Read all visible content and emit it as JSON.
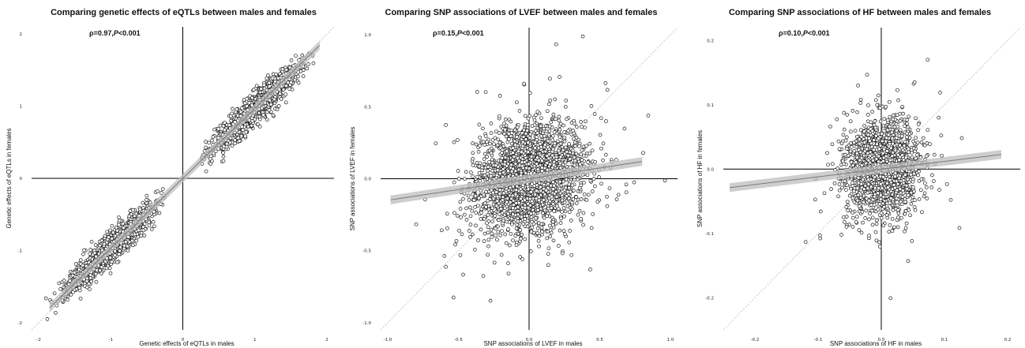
{
  "chart_data": [
    {
      "type": "scatter",
      "title": "Comparing genetic effects of eQTLs between males and females",
      "annotation_rho": "ρ=0.97,",
      "annotation_p_italic": "P",
      "annotation_rest": "<0.001",
      "xlabel": "Genetic effects of eQTLs in males",
      "ylabel": "Genetic effects of eQTLs in females",
      "xlim": [
        -2.1,
        2.1
      ],
      "ylim": [
        -2.1,
        2.1
      ],
      "xticks": [
        "-2",
        "-1",
        "0",
        "1",
        "2"
      ],
      "xtick_values": [
        -2,
        -1,
        0,
        1,
        2
      ],
      "yticks": [
        "-2",
        "-1",
        "0",
        "1",
        "2"
      ],
      "ytick_values": [
        -2,
        -1,
        0,
        1,
        2
      ],
      "grid": false,
      "identity_line": true,
      "fit_line": {
        "slope": 0.97,
        "intercept": 0.0,
        "x_range": [
          -1.85,
          1.9
        ]
      },
      "distribution": {
        "clusters": [
          {
            "count": 1300,
            "mean_x": 1.0,
            "mean_y": 0.97,
            "sd_along": 0.42,
            "sd_perp": 0.11,
            "min_x": 0.25,
            "max_x": 2.0
          },
          {
            "count": 1300,
            "mean_x": -1.0,
            "mean_y": -0.97,
            "sd_along": 0.42,
            "sd_perp": 0.11,
            "min_x": -1.95,
            "max_x": -0.25
          }
        ]
      },
      "marker_color": "#ffffff",
      "marker_edge": "#1a1a1a"
    },
    {
      "type": "scatter",
      "title": "Comparing SNP associations of LVEF between males and females",
      "annotation_rho": "ρ=0.15,",
      "annotation_p_italic": "P",
      "annotation_rest": "<0.001",
      "xlabel": "SNP associations of LVEF in males",
      "ylabel": "SNP associations of LVEF in females",
      "xlim": [
        -1.05,
        1.05
      ],
      "ylim": [
        -1.05,
        1.05
      ],
      "xticks": [
        "-1.0",
        "-0.5",
        "0.0",
        "0.5",
        "1.0"
      ],
      "xtick_values": [
        -1.0,
        -0.5,
        0.0,
        0.5,
        1.0
      ],
      "yticks": [
        "-1.0",
        "-0.5",
        "0.0",
        "0.5",
        "1.0"
      ],
      "ytick_values": [
        -1.0,
        -0.5,
        0.0,
        0.5,
        1.0
      ],
      "grid": false,
      "identity_line": true,
      "fit_line": {
        "slope": 0.15,
        "intercept": 0.0,
        "x_range": [
          -0.98,
          0.8
        ]
      },
      "distribution": {
        "clusters": [
          {
            "count": 2800,
            "mean_x": 0.0,
            "mean_y": 0.0,
            "sd_x": 0.18,
            "sd_y": 0.18,
            "correlation": 0.15
          }
        ]
      },
      "marker_color": "#ffffff",
      "marker_edge": "#1a1a1a"
    },
    {
      "type": "scatter",
      "title": "Comparing SNP associations of HF between males and females",
      "annotation_rho": "ρ=0.10,",
      "annotation_p_italic": "P",
      "annotation_rest": "<0.001",
      "xlabel": "SNP associations of HF in males",
      "ylabel": "SNP associations of HF in females",
      "xlim": [
        -0.25,
        0.22
      ],
      "ylim": [
        -0.25,
        0.22
      ],
      "xticks": [
        "-0.2",
        "-0.1",
        "0.0",
        "0.1",
        "0.2"
      ],
      "xtick_values": [
        -0.2,
        -0.1,
        0.0,
        0.1,
        0.2
      ],
      "yticks": [
        "-0.2",
        "-0.1",
        "0.0",
        "0.1",
        "0.2"
      ],
      "ytick_values": [
        -0.2,
        -0.1,
        0.0,
        0.1,
        0.2
      ],
      "grid": false,
      "identity_line": true,
      "fit_line": {
        "slope": 0.12,
        "intercept": 0.0,
        "x_range": [
          -0.24,
          0.19
        ]
      },
      "distribution": {
        "clusters": [
          {
            "count": 2000,
            "mean_x": 0.0,
            "mean_y": 0.0,
            "sd_x": 0.028,
            "sd_y": 0.035,
            "correlation": 0.1
          }
        ]
      },
      "marker_color": "#ffffff",
      "marker_edge": "#1a1a1a"
    }
  ]
}
